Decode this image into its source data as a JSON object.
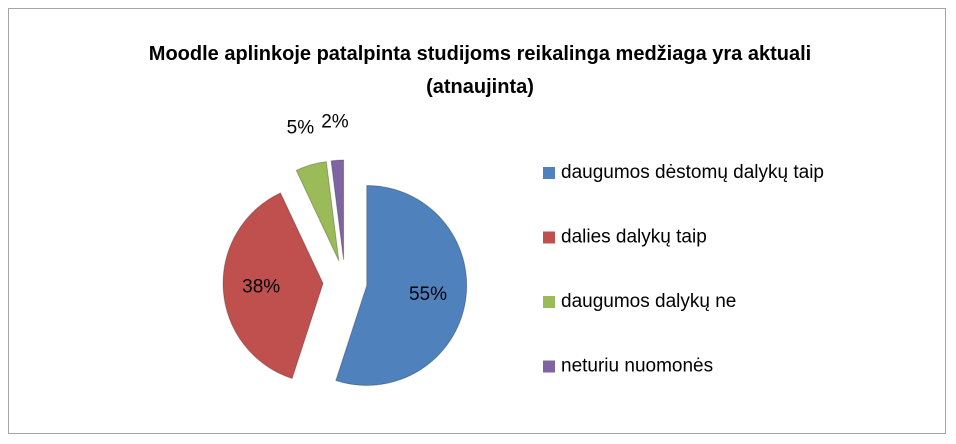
{
  "chart_data": {
    "type": "pie",
    "title": "Moodle aplinkoje patalpinta studijoms reikalinga medžiaga yra aktuali (atnaujinta)",
    "categories": [
      "daugumos dėstomų dalykų taip",
      "dalies dalykų taip",
      "daugumos dalykų ne",
      "neturiu nuomonės"
    ],
    "values": [
      55,
      38,
      5,
      2
    ],
    "value_labels": [
      "55%",
      "38%",
      "5%",
      "2%"
    ],
    "colors": [
      "#4f81bd",
      "#c0504d",
      "#9bbb59",
      "#8064a2"
    ],
    "legend": "right"
  }
}
